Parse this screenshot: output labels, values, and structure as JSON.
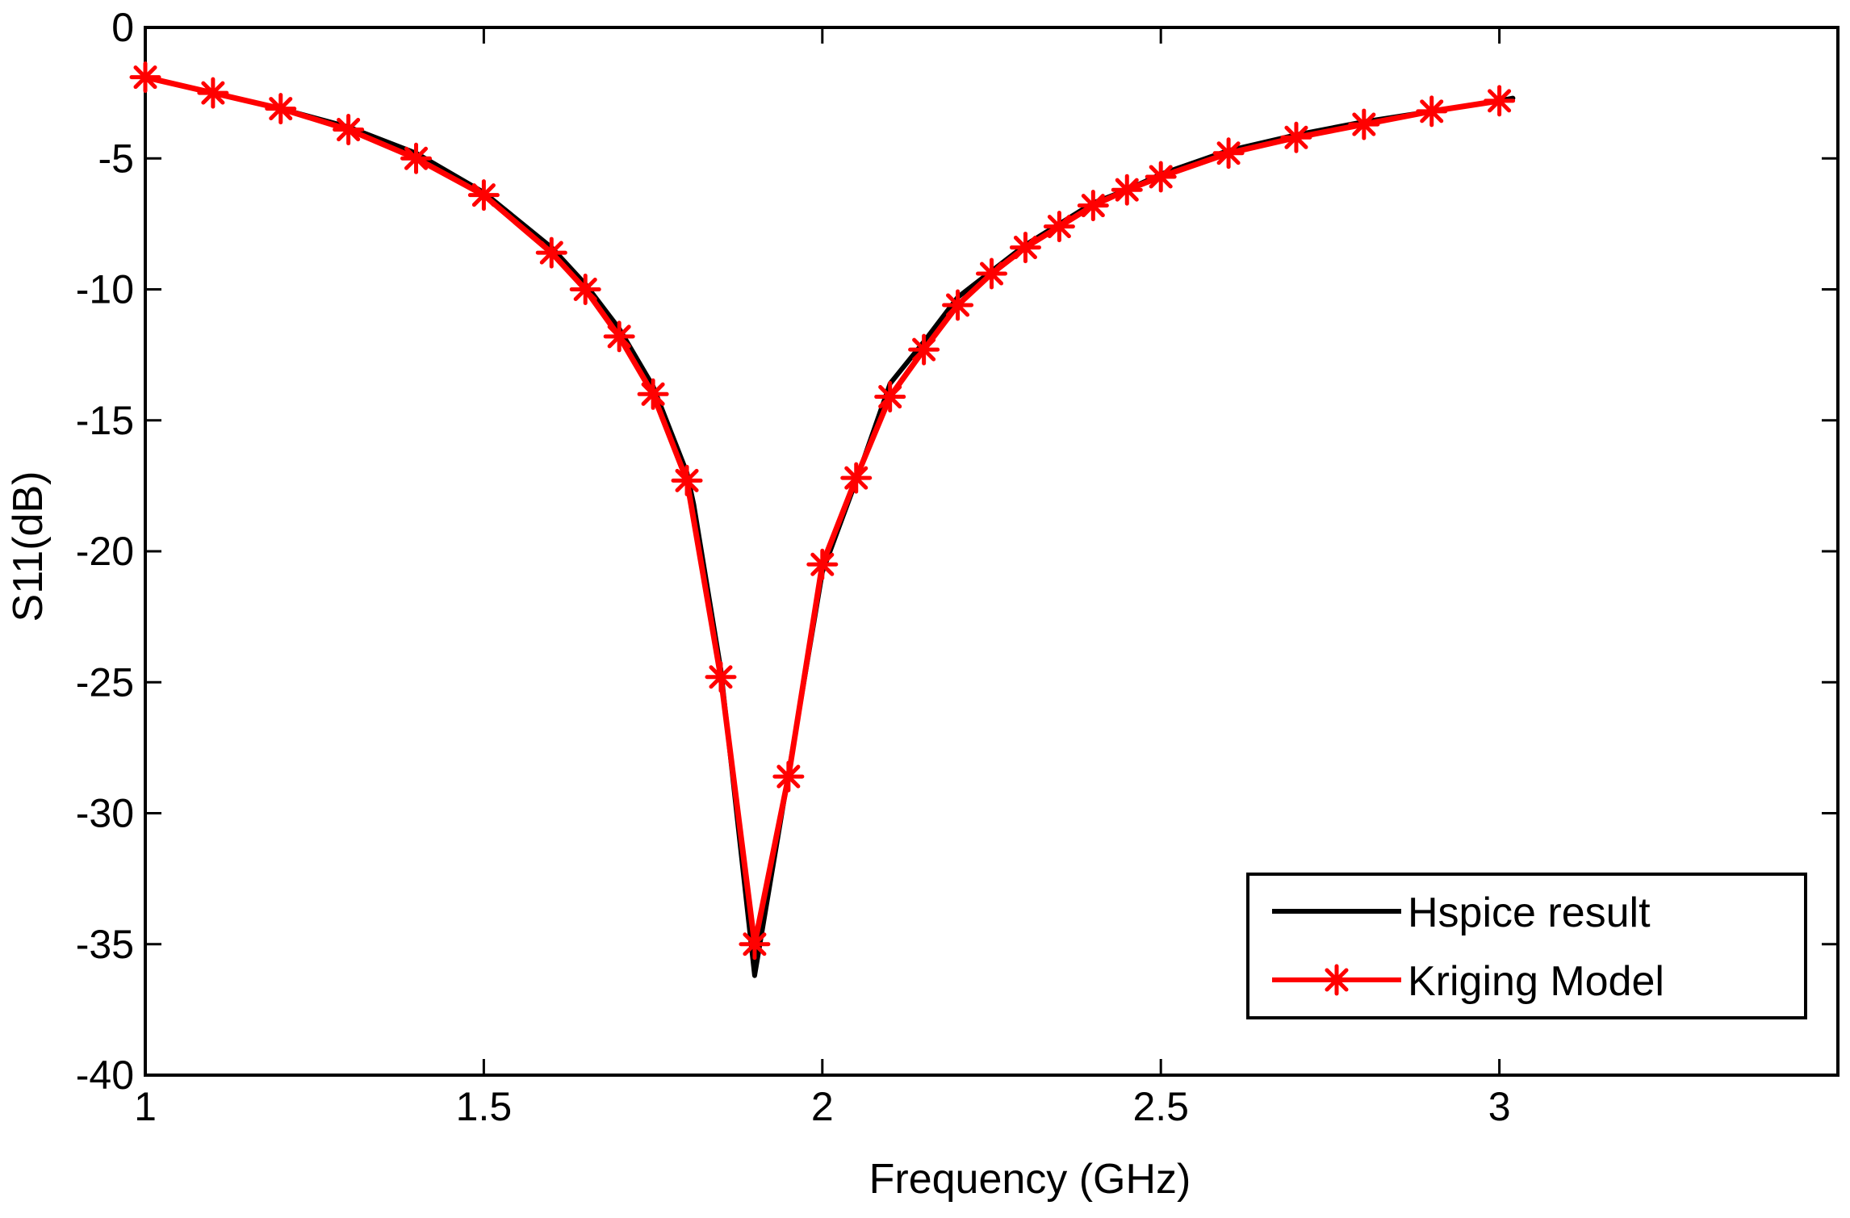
{
  "chart_data": {
    "type": "line",
    "title": "",
    "xlabel": "Frequency (GHz)",
    "ylabel": "S11(dB)",
    "xlim": [
      1,
      3.5
    ],
    "ylim": [
      -40,
      0
    ],
    "xticks": [
      1,
      1.5,
      2,
      2.5,
      3
    ],
    "xtick_labels": [
      "1",
      "1.5",
      "2",
      "2.5",
      "3"
    ],
    "yticks": [
      0,
      -5,
      -10,
      -15,
      -20,
      -25,
      -30,
      -35,
      -40
    ],
    "ytick_labels": [
      "0",
      "-5",
      "-10",
      "-15",
      "-20",
      "-25",
      "-30",
      "-35",
      "-40"
    ],
    "grid": false,
    "legend_position": "bottom-right",
    "series": [
      {
        "name": "Hspice result",
        "color": "#000000",
        "marker": "none",
        "x": [
          1.0,
          1.1,
          1.2,
          1.3,
          1.4,
          1.5,
          1.6,
          1.65,
          1.7,
          1.75,
          1.8,
          1.81,
          1.85,
          1.9,
          1.95,
          2.0,
          2.05,
          2.1,
          2.15,
          2.2,
          2.25,
          2.3,
          2.35,
          2.4,
          2.45,
          2.5,
          2.6,
          2.7,
          2.8,
          2.9,
          3.0,
          3.02
        ],
        "values": [
          -1.9,
          -2.5,
          -3.1,
          -3.8,
          -4.8,
          -6.3,
          -8.4,
          -9.8,
          -11.5,
          -13.7,
          -17.0,
          -18.2,
          -24.5,
          -36.2,
          -28.5,
          -20.8,
          -17.3,
          -13.6,
          -12.0,
          -10.3,
          -9.3,
          -8.3,
          -7.5,
          -6.7,
          -6.2,
          -5.6,
          -4.7,
          -4.1,
          -3.6,
          -3.2,
          -2.8,
          -2.7
        ]
      },
      {
        "name": "Kriging Model",
        "color": "#ff0000",
        "marker": "asterisk",
        "x": [
          1.0,
          1.1,
          1.2,
          1.3,
          1.4,
          1.5,
          1.6,
          1.65,
          1.7,
          1.75,
          1.8,
          1.85,
          1.9,
          1.95,
          2.0,
          2.05,
          2.1,
          2.15,
          2.2,
          2.25,
          2.3,
          2.35,
          2.4,
          2.45,
          2.5,
          2.6,
          2.7,
          2.8,
          2.9,
          3.0
        ],
        "values": [
          -1.9,
          -2.5,
          -3.1,
          -3.9,
          -5.0,
          -6.4,
          -8.6,
          -10.0,
          -11.8,
          -14.0,
          -17.3,
          -24.8,
          -35.0,
          -28.6,
          -20.5,
          -17.2,
          -14.1,
          -12.3,
          -10.6,
          -9.4,
          -8.4,
          -7.6,
          -6.8,
          -6.2,
          -5.7,
          -4.8,
          -4.2,
          -3.7,
          -3.2,
          -2.8
        ]
      }
    ]
  }
}
